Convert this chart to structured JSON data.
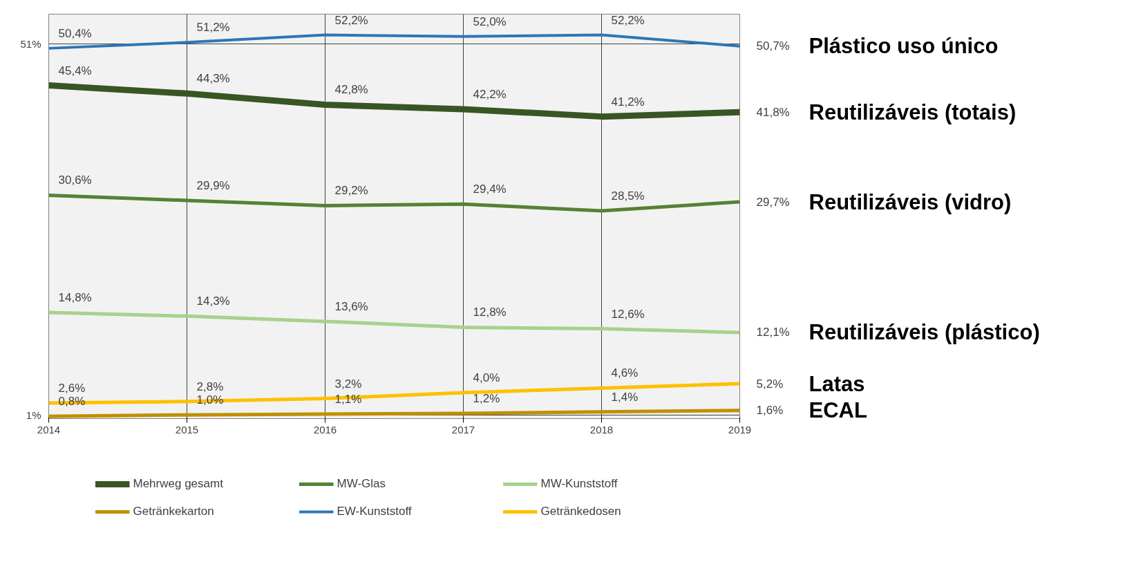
{
  "chart_data": {
    "type": "line",
    "x": [
      2014,
      2015,
      2016,
      2017,
      2018,
      2019
    ],
    "xlim": [
      2014,
      2019
    ],
    "xticks": [
      2014,
      2015,
      2016,
      2017,
      2018,
      2019
    ],
    "ylim": [
      0.5,
      55
    ],
    "yticks": [
      {
        "value": 1,
        "label": "1%"
      },
      {
        "value": 51,
        "label": "51%"
      }
    ],
    "grid": true,
    "legend": "bottom",
    "marker": "none",
    "line_style": "solid",
    "series": [
      {
        "name": "Mehrweg gesamt",
        "color": "#375623",
        "values": [
          45.4,
          44.3,
          42.8,
          42.2,
          41.2,
          41.8
        ],
        "value_labels": [
          "45,4%",
          "44,3%",
          "42,8%",
          "42,2%",
          "41,2%",
          "41,8%"
        ]
      },
      {
        "name": "MW-Glas",
        "color": "#548235",
        "values": [
          30.6,
          29.9,
          29.2,
          29.4,
          28.5,
          29.7
        ],
        "value_labels": [
          "30,6%",
          "29,9%",
          "29,2%",
          "29,4%",
          "28,5%",
          "29,7%"
        ]
      },
      {
        "name": "MW-Kunststoff",
        "color": "#a9d18e",
        "values": [
          14.8,
          14.3,
          13.6,
          12.8,
          12.6,
          12.1
        ],
        "value_labels": [
          "14,8%",
          "14,3%",
          "13,6%",
          "12,8%",
          "12,6%",
          "12,1%"
        ]
      },
      {
        "name": "Getränkekarton",
        "color": "#bf9000",
        "values": [
          0.8,
          1.0,
          1.1,
          1.2,
          1.4,
          1.6
        ],
        "value_labels": [
          "0,8%",
          "1,0%",
          "1,1%",
          "1,2%",
          "1,4%",
          "1,6%"
        ]
      },
      {
        "name": "EW-Kunststoff",
        "color": "#2e75b6",
        "values": [
          50.4,
          51.2,
          52.2,
          52.0,
          52.2,
          50.7
        ],
        "value_labels": [
          "50,4%",
          "51,2%",
          "52,2%",
          "52,0%",
          "52,2%",
          "50,7%"
        ]
      },
      {
        "name": "Getränkedosen",
        "color": "#ffc000",
        "values": [
          2.6,
          2.8,
          3.2,
          4.0,
          4.6,
          5.2
        ],
        "value_labels": [
          "2,6%",
          "2,8%",
          "3,2%",
          "4,0%",
          "4,6%",
          "5,2%"
        ]
      }
    ],
    "annotations": [
      "Plástico uso único",
      "Reutilizáveis (totais)",
      "Reutilizáveis (vidro)",
      "Reutilizáveis (plástico)",
      "Latas",
      "ECAL"
    ]
  }
}
